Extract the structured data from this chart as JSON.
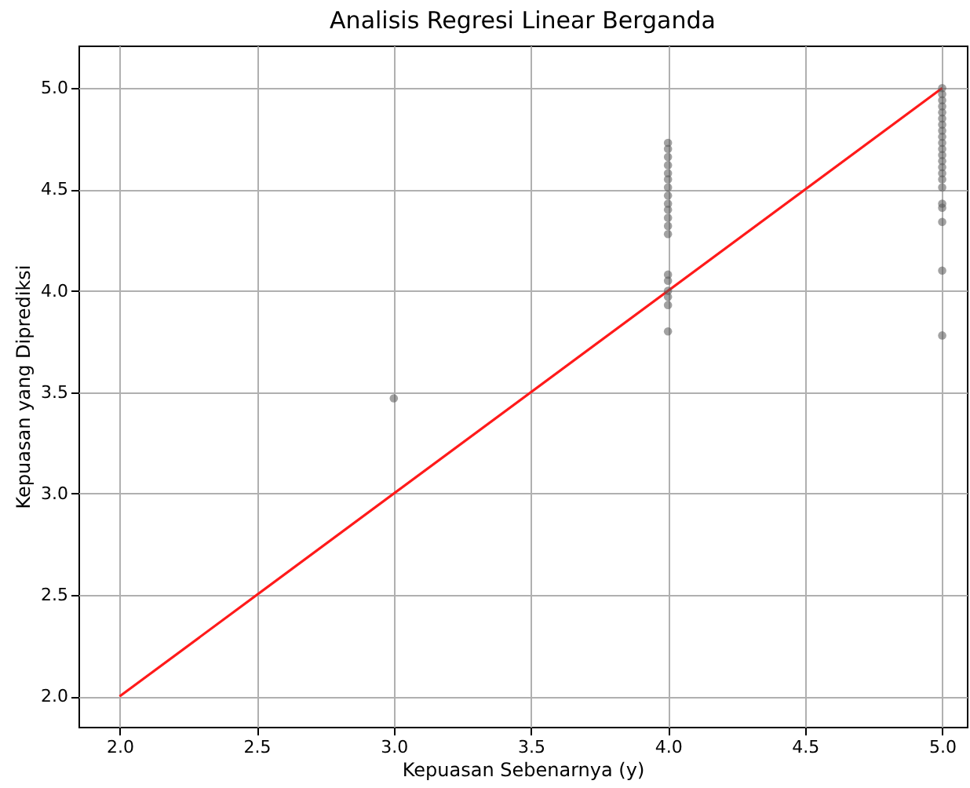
{
  "chart_data": {
    "type": "scatter",
    "title": "Analisis Regresi Linear Berganda",
    "xlabel": "Kepuasan Sebenarnya (y)",
    "ylabel": "Kepuasan yang Diprediksi",
    "xlim": [
      1.85,
      5.09
    ],
    "xticks": [
      {
        "value": 2,
        "label": "2.0"
      },
      2.5,
      {
        "value": 3,
        "label": "3.0"
      },
      3.5,
      {
        "value": 4,
        "label": "4.0"
      },
      4.5,
      {
        "value": 5,
        "label": "5.0"
      }
    ],
    "ylim": [
      1.85,
      5.21
    ],
    "yticks": [
      {
        "value": 2,
        "label": "2.0"
      },
      2.5,
      {
        "value": 3,
        "label": "3.0"
      },
      3.5,
      {
        "value": 4,
        "label": "4.0"
      },
      4.5,
      {
        "value": 5,
        "label": "5.0"
      }
    ],
    "grid": true,
    "marker": "circle",
    "series": [
      {
        "color": "#555555",
        "x": [
          3,
          4,
          4,
          4,
          4,
          4,
          4,
          4,
          4,
          4,
          4,
          4,
          4,
          4,
          4,
          4,
          4,
          4,
          4,
          4,
          5,
          5,
          5,
          5,
          5,
          5,
          5,
          5,
          5,
          5,
          5,
          5,
          5,
          5,
          5,
          5,
          5,
          5,
          5,
          5,
          5,
          5
        ],
        "values": [
          3.47,
          4.73,
          4.7,
          4.66,
          4.62,
          4.58,
          4.55,
          4.51,
          4.47,
          4.43,
          4.4,
          4.36,
          4.32,
          4.28,
          4.08,
          4.05,
          4.0,
          3.97,
          3.93,
          3.8,
          5.0,
          4.97,
          4.94,
          4.91,
          4.88,
          4.85,
          4.82,
          4.79,
          4.76,
          4.73,
          4.7,
          4.67,
          4.64,
          4.61,
          4.58,
          4.51,
          4.43,
          4.41,
          4.34,
          4.1,
          3.78,
          4.55
        ]
      },
      {
        "type": "line",
        "color": "#ff1a1a",
        "x": [
          2,
          5
        ],
        "values": [
          2,
          5
        ],
        "line_style": "solid",
        "marker": "none"
      }
    ]
  }
}
